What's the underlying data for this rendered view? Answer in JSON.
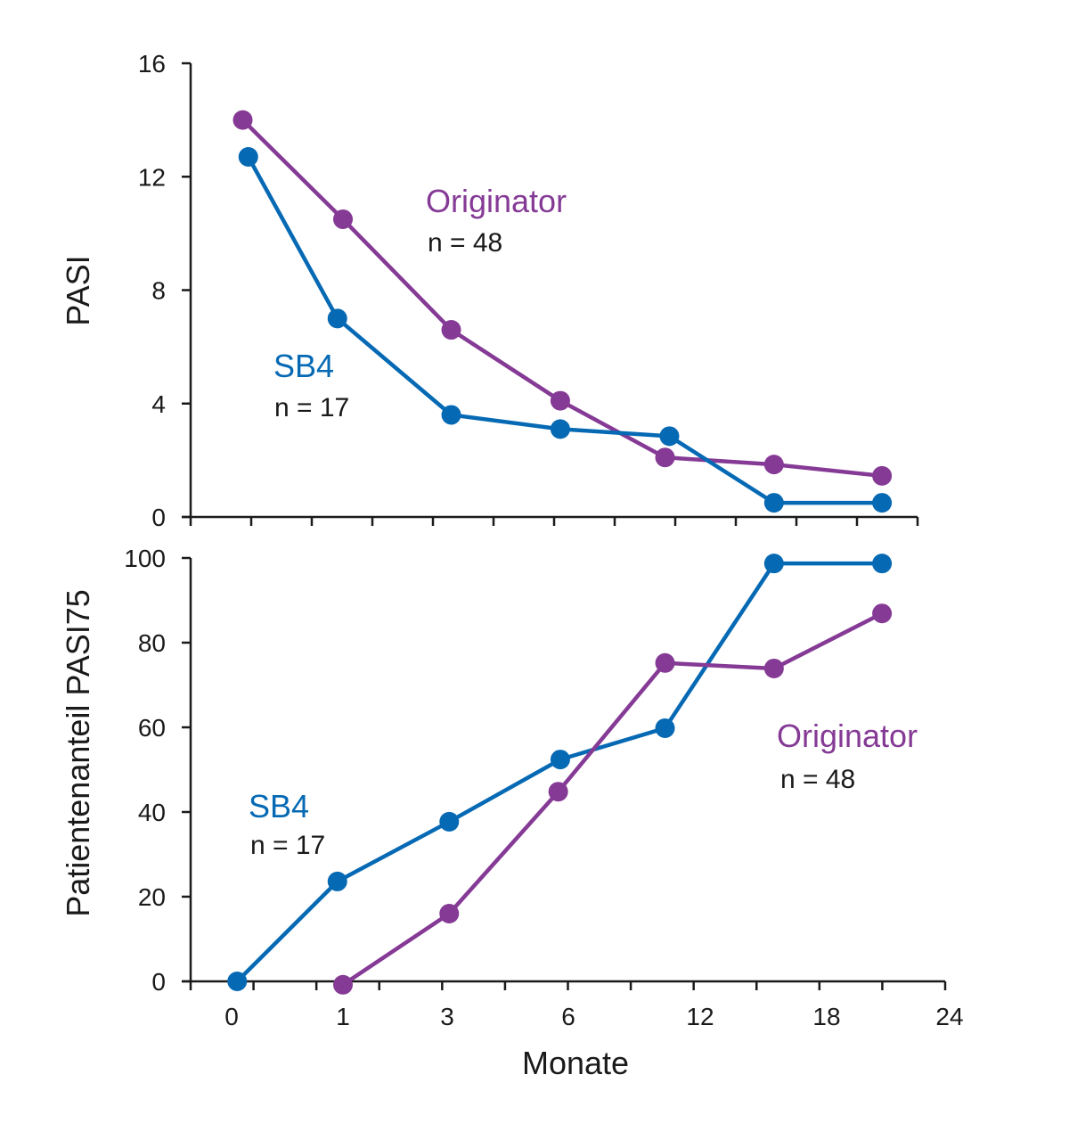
{
  "colors": {
    "sb4": "#0569b4",
    "originator": "#853a95",
    "axis": "#1a1a1a"
  },
  "chart_data": [
    {
      "type": "line",
      "title": "",
      "xlabel": "",
      "ylabel": "PASI",
      "ylim": [
        0,
        16
      ],
      "yticks": [
        0,
        4,
        8,
        12,
        16
      ],
      "x_tick_labels": [
        "0",
        "1",
        "3",
        "6",
        "12",
        "18",
        "24"
      ],
      "x_scale": "nonlinear (months)",
      "series": [
        {
          "name": "Originator",
          "n_label": "n = 48",
          "color": "originator",
          "x": [
            0.1,
            1.0,
            3.1,
            5.8,
            10.4,
            15.5,
            20.7
          ],
          "y": [
            14.0,
            10.5,
            6.6,
            4.1,
            2.1,
            1.85,
            1.45
          ]
        },
        {
          "name": "SB4",
          "n_label": "n = 17",
          "color": "sb4",
          "x": [
            0.15,
            0.95,
            3.1,
            5.8,
            10.6,
            15.5,
            20.7
          ],
          "y": [
            12.7,
            7.0,
            3.6,
            3.1,
            2.85,
            0.5,
            0.5
          ]
        }
      ],
      "annotations": [
        {
          "series": "Originator",
          "name": "Originator",
          "n": "n = 48"
        },
        {
          "series": "SB4",
          "name": "SB4",
          "n": "n = 17"
        }
      ]
    },
    {
      "type": "line",
      "title": "",
      "xlabel": "Monate",
      "ylabel": "Patientenanteil PASI75",
      "ylim": [
        0,
        100
      ],
      "yticks": [
        0,
        20,
        40,
        60,
        80,
        100
      ],
      "x_tick_labels": [
        "0",
        "1",
        "3",
        "6",
        "12",
        "18",
        "24"
      ],
      "x_scale": "nonlinear (months)",
      "series": [
        {
          "name": "SB4",
          "n_label": "n = 17",
          "color": "sb4",
          "x": [
            0.05,
            0.95,
            3.05,
            5.8,
            10.4,
            15.5,
            20.7
          ],
          "y": [
            0,
            23.6,
            37.7,
            52.4,
            59.8,
            98.7,
            98.7
          ]
        },
        {
          "name": "Originator",
          "n_label": "n = 48",
          "color": "originator",
          "x": [
            1.0,
            3.05,
            5.75,
            10.4,
            15.5,
            20.7
          ],
          "y": [
            -0.8,
            16.0,
            44.8,
            75.2,
            73.9,
            86.9
          ]
        }
      ],
      "annotations": [
        {
          "series": "SB4",
          "name": "SB4",
          "n": "n = 17"
        },
        {
          "series": "Originator",
          "name": "Originator",
          "n": "n = 48"
        }
      ]
    }
  ]
}
